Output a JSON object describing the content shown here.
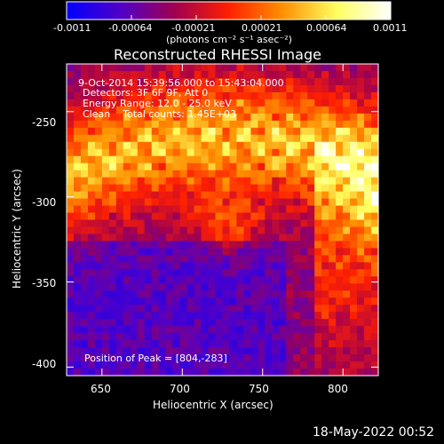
{
  "colorbar": {
    "ticks": [
      "-0.0011",
      "-0.00064",
      "-0.00021",
      "0.00021",
      "0.00064",
      "0.0011"
    ],
    "unit_label": "(photons cm⁻² s⁻¹ asec⁻²)",
    "colors": [
      "#0000ff",
      "#5000c8",
      "#a00050",
      "#ff2000",
      "#ff9000",
      "#ffff60",
      "#ffffff"
    ]
  },
  "chart_data": {
    "type": "heatmap",
    "title": "Reconstructed RHESSI Image",
    "xlabel": "Heliocentric X (arcsec)",
    "ylabel": "Heliocentric Y (arcsec)",
    "xlim": [
      628,
      822
    ],
    "ylim": [
      -405,
      -222
    ],
    "x_ticks": [
      650,
      700,
      750,
      800
    ],
    "y_ticks": [
      -250,
      -300,
      -350,
      -400
    ],
    "value_range": [
      -0.0011,
      0.0011
    ],
    "peak": [
      804,
      -283
    ],
    "annotations": [
      "9-Oct-2014 15:39:56.000 to 15:43:04.000",
      "Detectors: 3F 6F 9F, Att 0",
      "Energy Range: 12.0 - 25.0 keV",
      "Clean    Total counts: 1.45E+03",
      "Position of Peak = [804,-283]"
    ]
  },
  "footer": {
    "timestamp": "18-May-2022 00:52"
  }
}
